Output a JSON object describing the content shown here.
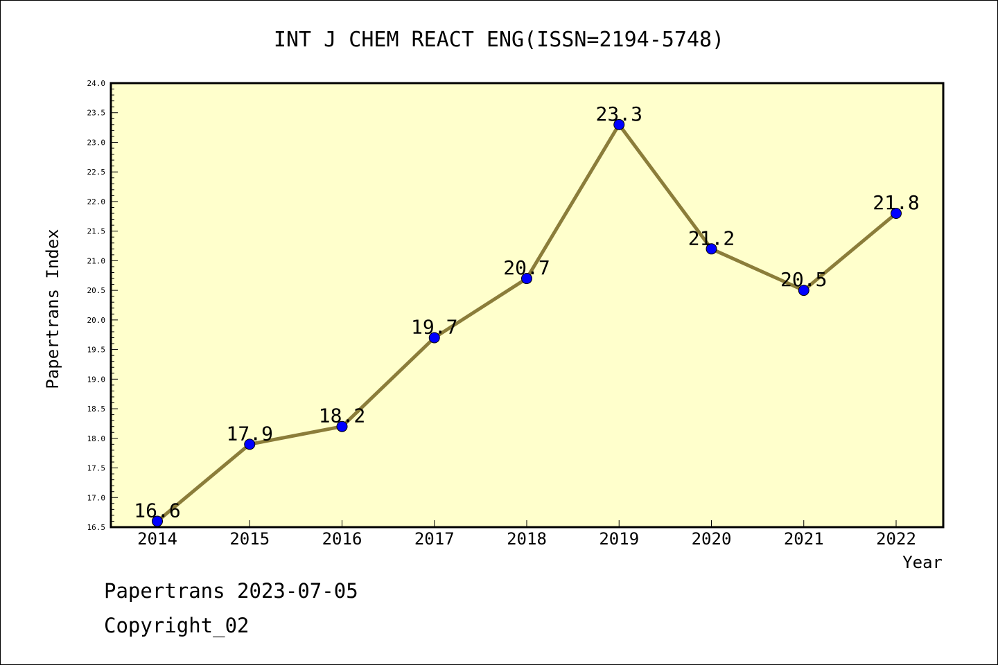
{
  "chart_data": {
    "type": "line",
    "title": "INT J CHEM REACT ENG(ISSN=2194-5748)",
    "xlabel": "Year",
    "ylabel": "Papertrans Index",
    "categories": [
      "2014",
      "2015",
      "2016",
      "2017",
      "2018",
      "2019",
      "2020",
      "2021",
      "2022"
    ],
    "series": [
      {
        "values": [
          16.6,
          17.9,
          18.2,
          19.7,
          20.7,
          23.3,
          21.2,
          20.5,
          21.8
        ]
      }
    ],
    "data_labels": [
      "16.6",
      "17.9",
      "18.2",
      "19.7",
      "20.7",
      "23.3",
      "21.2",
      "20.5",
      "21.8"
    ],
    "ylim": [
      16.5,
      24.0
    ],
    "y_ticks": [
      "16.5",
      "17.0",
      "17.5",
      "18.0",
      "18.5",
      "19.0",
      "19.5",
      "20.0",
      "20.5",
      "21.0",
      "21.5",
      "22.0",
      "22.5",
      "23.0",
      "23.5",
      "24.0"
    ],
    "grid": false,
    "legend": "none",
    "colors": {
      "plot_background": "#ffffcc",
      "line": "#8b7d3a",
      "marker": "#0000ff"
    }
  },
  "footer": {
    "date_line": "Papertrans 2023-07-05",
    "copyright": "Copyright_02"
  }
}
